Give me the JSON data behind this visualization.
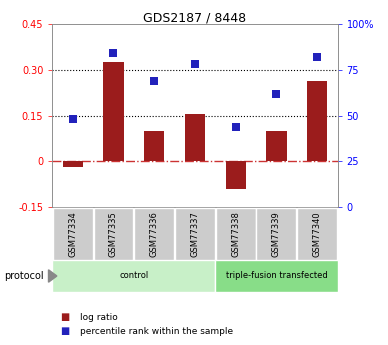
{
  "title": "GDS2187 / 8448",
  "samples": [
    "GSM77334",
    "GSM77335",
    "GSM77336",
    "GSM77337",
    "GSM77338",
    "GSM77339",
    "GSM77340"
  ],
  "log_ratio": [
    -0.02,
    0.325,
    0.1,
    0.155,
    -0.09,
    0.1,
    0.265
  ],
  "percentile_rank": [
    0.48,
    0.84,
    0.69,
    0.78,
    0.44,
    0.62,
    0.82
  ],
  "bar_color": "#9B1C1C",
  "dot_color": "#2222bb",
  "ylim_left": [
    -0.15,
    0.45
  ],
  "ylim_right": [
    0,
    100
  ],
  "yticks_left": [
    -0.15,
    0.0,
    0.15,
    0.3,
    0.45
  ],
  "yticks_right": [
    0,
    25,
    50,
    75,
    100
  ],
  "ytick_labels_left": [
    "-0.15",
    "0",
    "0.15",
    "0.30",
    "0.45"
  ],
  "ytick_labels_right": [
    "0",
    "25",
    "50",
    "75",
    "100%"
  ],
  "hlines": [
    0.15,
    0.3
  ],
  "groups": [
    {
      "label": "control",
      "indices": [
        0,
        1,
        2,
        3
      ],
      "color": "#c8f0c8"
    },
    {
      "label": "triple-fusion transfected",
      "indices": [
        4,
        5,
        6
      ],
      "color": "#88dd88"
    }
  ],
  "protocol_label": "protocol",
  "legend_bar_label": "log ratio",
  "legend_dot_label": "percentile rank within the sample",
  "zero_line_color": "#cc3333",
  "sample_box_color": "#cccccc"
}
